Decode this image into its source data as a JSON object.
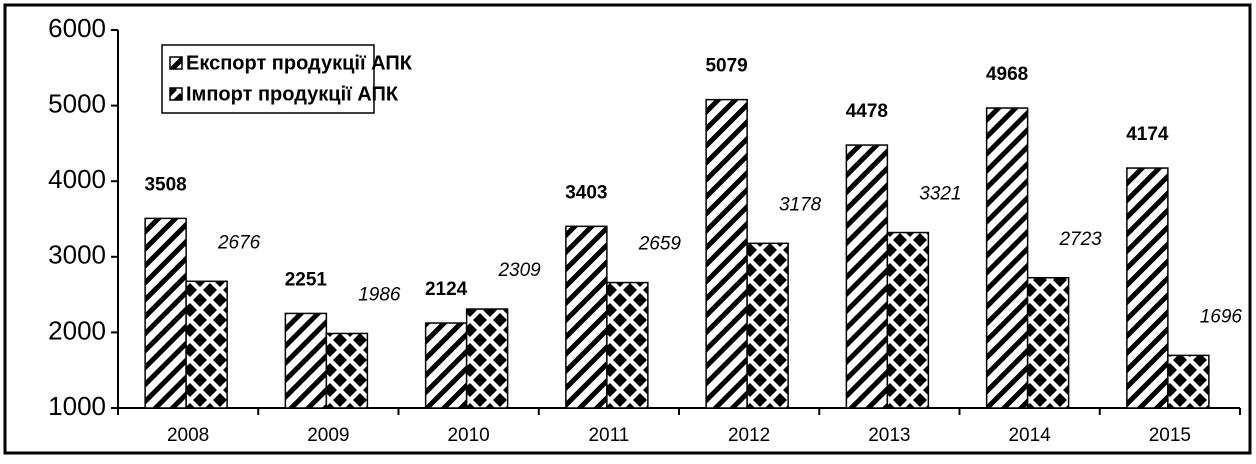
{
  "chart_data": {
    "type": "bar",
    "categories": [
      "2008",
      "2009",
      "2010",
      "2011",
      "2012",
      "2013",
      "2014",
      "2015"
    ],
    "series": [
      {
        "name": "Експорт продукції АПК",
        "color": "#000000",
        "hatch": "diagonal",
        "values": [
          3508,
          2251,
          2124,
          3403,
          5079,
          4478,
          4968,
          4174
        ]
      },
      {
        "name": "Імпорт продукції АПК",
        "color": "#000000",
        "hatch": "diamond",
        "values": [
          2676,
          1986,
          2309,
          2659,
          3178,
          3321,
          2723,
          1696
        ]
      }
    ],
    "ylim": [
      1000,
      6000
    ],
    "yticks": [
      1000,
      2000,
      3000,
      4000,
      5000,
      6000
    ],
    "grid": false,
    "legend": "upper left"
  }
}
